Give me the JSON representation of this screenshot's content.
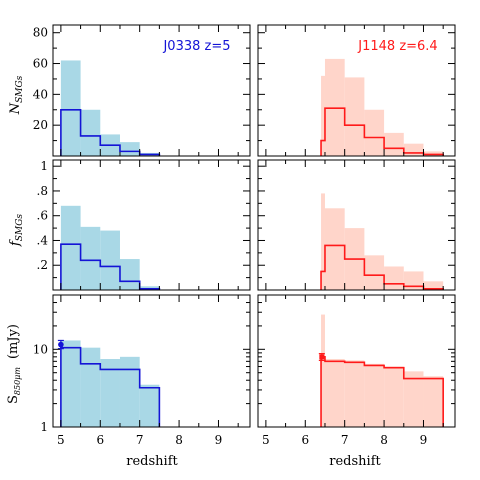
{
  "colors": {
    "left_line": "#1414d6",
    "left_fill": "#a9d8e6",
    "right_line": "#ff1a1a",
    "right_fill": "#ffd5ca"
  },
  "labels": {
    "left_title": "J0338  z=5",
    "right_title": "J1148  z=6.4",
    "xlabel": "redshift",
    "ylabel_row1": "N",
    "ylabel_row1_sub": "SMGs",
    "ylabel_row2": "f",
    "ylabel_row2_sub": "SMGs",
    "ylabel_row3_main": "S",
    "ylabel_row3_sub": "850μm",
    "ylabel_row3_unit": "(mJy)"
  },
  "chart_data": [
    {
      "type": "bar",
      "panel": "left-row1",
      "title": "J0338  z=5",
      "xlabel": "",
      "ylabel": "N SMGs",
      "xlim": [
        4.8,
        9.8
      ],
      "ylim": [
        0,
        85
      ],
      "xticks": [
        5,
        6,
        7,
        8,
        9
      ],
      "yticks": [
        20,
        40,
        60,
        80
      ],
      "bin_edges": [
        5.0,
        5.5,
        6.0,
        6.5,
        7.0,
        7.5
      ],
      "series": [
        {
          "style": "filled",
          "values": [
            62,
            30,
            14,
            9,
            2
          ]
        },
        {
          "style": "step",
          "values": [
            30,
            13,
            7,
            3,
            1
          ]
        }
      ]
    },
    {
      "type": "bar",
      "panel": "right-row1",
      "title": "J1148  z=6.4",
      "xlim": [
        4.8,
        9.8
      ],
      "ylim": [
        0,
        85
      ],
      "xticks": [
        5,
        6,
        7,
        8,
        9
      ],
      "yticks": [
        20,
        40,
        60,
        80
      ],
      "bin_edges": [
        6.4,
        6.5,
        7.0,
        7.5,
        8.0,
        8.5,
        9.0,
        9.5
      ],
      "series": [
        {
          "style": "filled",
          "values": [
            52,
            63,
            51,
            30,
            15,
            8,
            3
          ]
        },
        {
          "style": "step",
          "values": [
            10,
            31,
            20,
            12,
            5,
            2,
            1
          ]
        }
      ]
    },
    {
      "type": "bar",
      "panel": "left-row2",
      "xlim": [
        4.8,
        9.8
      ],
      "ylim": [
        0,
        1.05
      ],
      "xticks": [
        5,
        6,
        7,
        8,
        9
      ],
      "yticks": [
        0.2,
        0.4,
        0.6,
        0.8,
        1
      ],
      "ytick_labels": [
        ".2",
        ".4",
        ".6",
        ".8",
        "1"
      ],
      "bin_edges": [
        5.0,
        5.5,
        6.0,
        6.5,
        7.0,
        7.5
      ],
      "series": [
        {
          "style": "filled",
          "values": [
            0.68,
            0.51,
            0.48,
            0.25,
            0.03
          ]
        },
        {
          "style": "step",
          "values": [
            0.37,
            0.24,
            0.19,
            0.07,
            0.01
          ]
        }
      ]
    },
    {
      "type": "bar",
      "panel": "right-row2",
      "xlim": [
        4.8,
        9.8
      ],
      "ylim": [
        0,
        1.05
      ],
      "xticks": [
        5,
        6,
        7,
        8,
        9
      ],
      "yticks": [
        0.2,
        0.4,
        0.6,
        0.8,
        1
      ],
      "ytick_labels": [
        ".2",
        ".4",
        ".6",
        ".8",
        "1"
      ],
      "bin_edges": [
        6.4,
        6.5,
        7.0,
        7.5,
        8.0,
        8.5,
        9.0,
        9.5
      ],
      "series": [
        {
          "style": "filled",
          "values": [
            0.78,
            0.66,
            0.5,
            0.28,
            0.19,
            0.15,
            0.07
          ]
        },
        {
          "style": "step",
          "values": [
            0.15,
            0.36,
            0.25,
            0.12,
            0.05,
            0.03,
            0.01
          ]
        }
      ]
    },
    {
      "type": "bar",
      "panel": "left-row3",
      "xlabel": "redshift",
      "ylabel": "S 850μm (mJy)",
      "yscale": "log",
      "xlim": [
        4.8,
        9.8
      ],
      "ylim": [
        1,
        50
      ],
      "xticks": [
        5,
        6,
        7,
        8,
        9
      ],
      "yticks": [
        1,
        10
      ],
      "bin_edges": [
        5.0,
        5.5,
        6.0,
        6.5,
        7.0,
        7.5
      ],
      "series": [
        {
          "style": "filled",
          "values": [
            13,
            10.5,
            7.5,
            8,
            3.5
          ]
        },
        {
          "style": "step",
          "values": [
            10.5,
            6.5,
            5.5,
            5.5,
            3.2
          ]
        }
      ],
      "points": [
        {
          "x": 5.0,
          "y": 11.5,
          "yerr_low": 10.2,
          "yerr_high": 13.0
        }
      ]
    },
    {
      "type": "bar",
      "panel": "right-row3",
      "xlabel": "redshift",
      "yscale": "log",
      "xlim": [
        4.8,
        9.8
      ],
      "ylim": [
        1,
        50
      ],
      "xticks": [
        5,
        6,
        7,
        8,
        9
      ],
      "yticks": [
        1,
        10
      ],
      "bin_edges": [
        6.4,
        6.5,
        7.0,
        7.5,
        8.0,
        8.5,
        9.0,
        9.5
      ],
      "series": [
        {
          "style": "filled",
          "values": [
            28,
            7.5,
            7.2,
            6.5,
            6.0,
            5.2,
            4.5
          ]
        },
        {
          "style": "step",
          "values": [
            8.0,
            7.0,
            6.8,
            6.2,
            5.8,
            4.2,
            4.2
          ]
        }
      ],
      "points": [
        {
          "x": 6.42,
          "y": 8.0,
          "yerr_low": 7.2,
          "yerr_high": 8.8
        }
      ]
    }
  ]
}
